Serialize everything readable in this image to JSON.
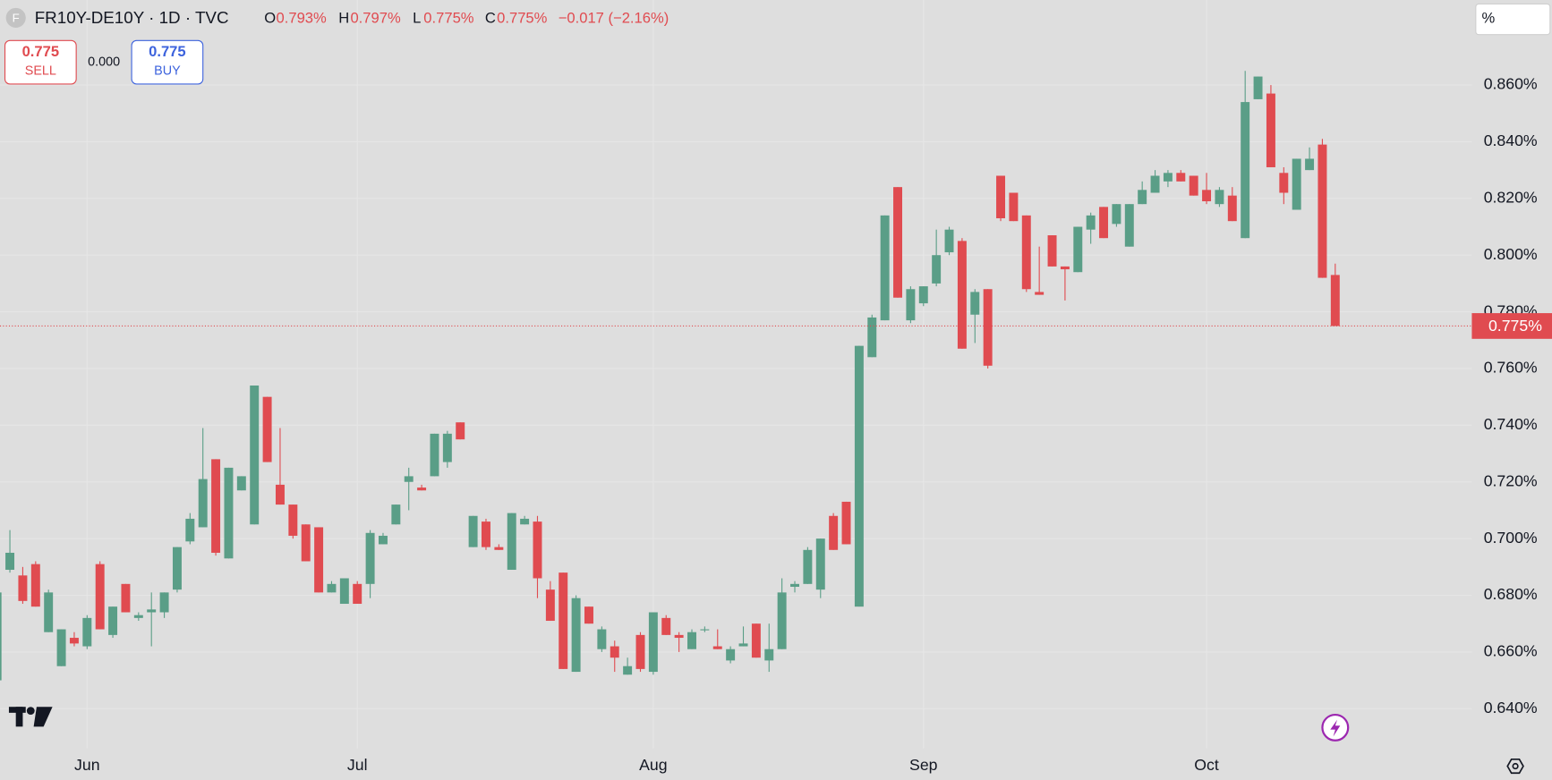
{
  "header": {
    "icon": "F",
    "symbol": "FR10Y-DE10Y · 1D · TVC",
    "ohlc": [
      {
        "key": "O",
        "value": "0.793%"
      },
      {
        "key": "H",
        "value": "0.797%"
      },
      {
        "key": "L",
        "value": "0.775%"
      },
      {
        "key": "C",
        "value": "0.775%"
      }
    ],
    "change": "−0.017 (−2.16%)"
  },
  "trade": {
    "sell_price": "0.775",
    "sell": "SELL",
    "spread": "0.000",
    "buy_price": "0.775",
    "buy": "BUY"
  },
  "unit_button": "%",
  "chart_data": {
    "type": "candlestick",
    "up_color": "#5a9e87",
    "down_color": "#e04b50",
    "grid": true,
    "categories": [
      null,
      null,
      null,
      null,
      null,
      null,
      null,
      "Jun",
      null,
      null,
      null,
      null,
      null,
      null,
      null,
      null,
      null,
      null,
      null,
      null,
      null,
      null,
      null,
      null,
      null,
      null,
      null,
      null,
      "Jul",
      null,
      null,
      null,
      null,
      null,
      null,
      null,
      null,
      null,
      null,
      null,
      null,
      null,
      null,
      null,
      null,
      null,
      null,
      null,
      null,
      null,
      null,
      "Aug",
      null,
      null,
      null,
      null,
      null,
      null,
      null,
      null,
      null,
      null,
      null,
      null,
      null,
      null,
      null,
      null,
      null,
      null,
      null,
      null,
      "Sep",
      null,
      null,
      null,
      null,
      null,
      null,
      null,
      null,
      null,
      null,
      null,
      null,
      null,
      null,
      null,
      null,
      null,
      null,
      null,
      null,
      null,
      "Oct",
      null,
      null,
      null,
      null,
      null,
      null,
      null,
      null,
      null,
      null
    ],
    "open": [
      0.65,
      0.689,
      0.687,
      0.691,
      0.667,
      0.655,
      0.665,
      0.662,
      0.691,
      0.666,
      0.684,
      0.672,
      0.674,
      0.674,
      0.682,
      0.699,
      0.704,
      0.728,
      0.693,
      0.717,
      0.705,
      0.75,
      0.719,
      0.712,
      0.705,
      0.704,
      0.681,
      0.677,
      0.684,
      0.684,
      0.698,
      0.705,
      0.72,
      0.718,
      0.722,
      0.727,
      0.741,
      0.697,
      0.706,
      0.697,
      0.689,
      0.705,
      0.706,
      0.682,
      0.688,
      0.653,
      0.676,
      0.661,
      0.662,
      0.652,
      0.666,
      0.653,
      0.672,
      0.666,
      0.661,
      0.668,
      0.662,
      0.657,
      0.662,
      0.67,
      0.657,
      0.661,
      0.683,
      0.684,
      0.682,
      0.708,
      0.713,
      0.676,
      0.764,
      0.777,
      0.824,
      0.777,
      0.783,
      0.79,
      0.801,
      0.805,
      0.779,
      0.788,
      0.828,
      0.822,
      0.814,
      0.787,
      0.807,
      0.796,
      0.794,
      0.809,
      0.817,
      0.811,
      0.803,
      0.818,
      0.822,
      0.826,
      0.829,
      0.828,
      0.823,
      0.818,
      0.821,
      0.806,
      0.855,
      0.857,
      0.829,
      0.816,
      0.83,
      0.839,
      0.793
    ],
    "high": [
      0.682,
      0.703,
      0.69,
      0.692,
      0.682,
      0.668,
      0.667,
      0.673,
      0.692,
      0.676,
      0.684,
      0.674,
      0.681,
      0.681,
      0.697,
      0.709,
      0.739,
      0.728,
      0.725,
      0.722,
      0.754,
      0.75,
      0.739,
      0.712,
      0.705,
      0.704,
      0.685,
      0.686,
      0.685,
      0.703,
      0.702,
      0.712,
      0.725,
      0.719,
      0.737,
      0.738,
      0.741,
      0.708,
      0.707,
      0.698,
      0.709,
      0.708,
      0.708,
      0.685,
      0.688,
      0.68,
      0.676,
      0.669,
      0.664,
      0.658,
      0.667,
      0.674,
      0.673,
      0.667,
      0.668,
      0.669,
      0.668,
      0.662,
      0.669,
      0.67,
      0.67,
      0.686,
      0.685,
      0.697,
      0.7,
      0.709,
      0.713,
      0.768,
      0.779,
      0.814,
      0.824,
      0.789,
      0.789,
      0.809,
      0.81,
      0.806,
      0.788,
      0.788,
      0.828,
      0.822,
      0.814,
      0.803,
      0.807,
      0.796,
      0.81,
      0.815,
      0.817,
      0.818,
      0.818,
      0.826,
      0.83,
      0.83,
      0.83,
      0.828,
      0.829,
      0.824,
      0.824,
      0.865,
      0.863,
      0.86,
      0.831,
      0.834,
      0.838,
      0.841,
      0.797
    ],
    "low": [
      0.649,
      0.688,
      0.677,
      0.676,
      0.667,
      0.655,
      0.662,
      0.661,
      0.668,
      0.665,
      0.674,
      0.671,
      0.662,
      0.672,
      0.681,
      0.698,
      0.704,
      0.694,
      0.693,
      0.717,
      0.705,
      0.727,
      0.712,
      0.7,
      0.692,
      0.681,
      0.681,
      0.677,
      0.677,
      0.679,
      0.698,
      0.705,
      0.71,
      0.717,
      0.722,
      0.725,
      0.735,
      0.697,
      0.696,
      0.696,
      0.689,
      0.705,
      0.679,
      0.671,
      0.654,
      0.653,
      0.67,
      0.66,
      0.653,
      0.652,
      0.653,
      0.652,
      0.666,
      0.66,
      0.661,
      0.667,
      0.661,
      0.656,
      0.662,
      0.658,
      0.653,
      0.661,
      0.681,
      0.684,
      0.679,
      0.696,
      0.698,
      0.676,
      0.764,
      0.777,
      0.785,
      0.776,
      0.782,
      0.789,
      0.8,
      0.767,
      0.769,
      0.76,
      0.812,
      0.812,
      0.787,
      0.786,
      0.796,
      0.784,
      0.794,
      0.804,
      0.806,
      0.81,
      0.803,
      0.818,
      0.822,
      0.824,
      0.826,
      0.821,
      0.818,
      0.817,
      0.812,
      0.806,
      0.855,
      0.831,
      0.818,
      0.816,
      0.83,
      0.792,
      0.775
    ],
    "close": [
      0.681,
      0.695,
      0.678,
      0.676,
      0.681,
      0.668,
      0.663,
      0.672,
      0.668,
      0.676,
      0.674,
      0.673,
      0.675,
      0.681,
      0.697,
      0.707,
      0.721,
      0.695,
      0.725,
      0.722,
      0.754,
      0.727,
      0.712,
      0.701,
      0.692,
      0.681,
      0.684,
      0.686,
      0.677,
      0.702,
      0.701,
      0.712,
      0.722,
      0.717,
      0.737,
      0.737,
      0.735,
      0.708,
      0.697,
      0.696,
      0.709,
      0.707,
      0.686,
      0.671,
      0.654,
      0.679,
      0.67,
      0.668,
      0.658,
      0.655,
      0.654,
      0.674,
      0.666,
      0.665,
      0.667,
      0.668,
      0.661,
      0.661,
      0.663,
      0.658,
      0.661,
      0.681,
      0.684,
      0.696,
      0.7,
      0.696,
      0.698,
      0.768,
      0.778,
      0.814,
      0.785,
      0.788,
      0.789,
      0.8,
      0.809,
      0.767,
      0.787,
      0.761,
      0.813,
      0.812,
      0.788,
      0.786,
      0.796,
      0.795,
      0.81,
      0.814,
      0.806,
      0.818,
      0.818,
      0.823,
      0.828,
      0.829,
      0.826,
      0.821,
      0.819,
      0.823,
      0.812,
      0.854,
      0.863,
      0.831,
      0.822,
      0.834,
      0.834,
      0.792,
      0.775
    ],
    "ylim": [
      0.626,
      0.89
    ],
    "yticks": [
      {
        "value": 0.64,
        "label": "0.640%"
      },
      {
        "value": 0.66,
        "label": "0.660%"
      },
      {
        "value": 0.68,
        "label": "0.680%"
      },
      {
        "value": 0.7,
        "label": "0.700%"
      },
      {
        "value": 0.72,
        "label": "0.720%"
      },
      {
        "value": 0.74,
        "label": "0.740%"
      },
      {
        "value": 0.76,
        "label": "0.760%"
      },
      {
        "value": 0.78,
        "label": "0.780%"
      },
      {
        "value": 0.8,
        "label": "0.800%"
      },
      {
        "value": 0.82,
        "label": "0.820%"
      },
      {
        "value": 0.84,
        "label": "0.840%"
      },
      {
        "value": 0.86,
        "label": "0.860%"
      }
    ],
    "last_price": {
      "value": 0.775,
      "label": "0.775%"
    }
  }
}
